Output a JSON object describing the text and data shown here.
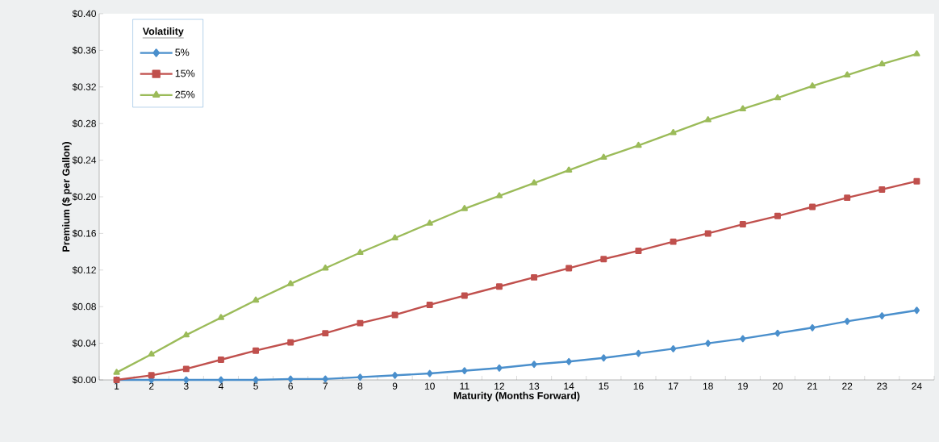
{
  "chart_data": {
    "type": "line",
    "xlabel": "Maturity (Months Forward)",
    "ylabel": "Premium ($ per Gallon)",
    "legend_title": "Volatility",
    "categories": [
      "1",
      "2",
      "3",
      "4",
      "5",
      "6",
      "7",
      "8",
      "9",
      "10",
      "11",
      "12",
      "13",
      "14",
      "15",
      "16",
      "17",
      "18",
      "19",
      "20",
      "21",
      "22",
      "23",
      "24"
    ],
    "series": [
      {
        "name": "5%",
        "color": "#4a8fcc",
        "marker": "diamond",
        "values": [
          0,
          0,
          0,
          0,
          0,
          0.001,
          0.001,
          0.003,
          0.005,
          0.007,
          0.01,
          0.013,
          0.017,
          0.02,
          0.024,
          0.029,
          0.034,
          0.04,
          0.045,
          0.051,
          0.057,
          0.064,
          0.07,
          0.076
        ]
      },
      {
        "name": "15%",
        "color": "#c0504d",
        "marker": "square",
        "values": [
          0.0,
          0.005,
          0.012,
          0.022,
          0.032,
          0.041,
          0.051,
          0.062,
          0.071,
          0.082,
          0.092,
          0.102,
          0.112,
          0.122,
          0.132,
          0.141,
          0.151,
          0.16,
          0.17,
          0.179,
          0.189,
          0.199,
          0.208,
          0.217
        ]
      },
      {
        "name": "25%",
        "color": "#9bbb59",
        "marker": "triangle",
        "values": [
          0.008,
          0.028,
          0.049,
          0.068,
          0.087,
          0.105,
          0.122,
          0.139,
          0.155,
          0.171,
          0.187,
          0.201,
          0.215,
          0.229,
          0.243,
          0.256,
          0.27,
          0.284,
          0.296,
          0.308,
          0.321,
          0.333,
          0.345,
          0.356
        ]
      }
    ],
    "ylim": [
      0,
      0.4
    ],
    "yticks": [
      {
        "value": 0,
        "label": "$0.00"
      },
      {
        "value": 0.04,
        "label": "$0.04"
      },
      {
        "value": 0.08,
        "label": "$0.08"
      },
      {
        "value": 0.12,
        "label": "$0.12"
      },
      {
        "value": 0.16,
        "label": "$0.16"
      },
      {
        "value": 0.2,
        "label": "$0.20"
      },
      {
        "value": 0.24,
        "label": "$0.24"
      },
      {
        "value": 0.28,
        "label": "$0.28"
      },
      {
        "value": 0.32,
        "label": "$0.32"
      },
      {
        "value": 0.36,
        "label": "$0.36"
      },
      {
        "value": 0.4,
        "label": "$0.40"
      }
    ],
    "grid": false,
    "legend": "top left",
    "line_style": "solid"
  }
}
